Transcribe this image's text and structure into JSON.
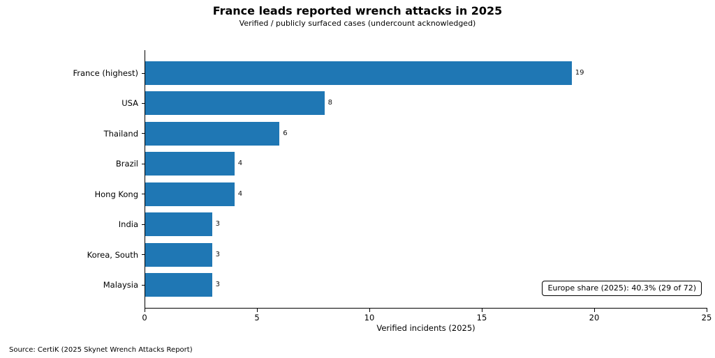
{
  "header": {
    "title": "France leads reported wrench attacks in 2025",
    "subtitle": "Verified / publicly surfaced cases (undercount acknowledged)"
  },
  "chart_data": {
    "type": "bar",
    "orientation": "horizontal",
    "title": "France leads reported wrench attacks in 2025",
    "subtitle": "Verified / publicly surfaced cases (undercount acknowledged)",
    "categories": [
      "France (highest)",
      "USA",
      "Thailand",
      "Brazil",
      "Hong Kong",
      "India",
      "Korea, South",
      "Malaysia"
    ],
    "values": [
      19,
      8,
      6,
      4,
      4,
      3,
      3,
      3
    ],
    "xlabel": "Verified incidents (2025)",
    "ylabel": "",
    "xlim": [
      0,
      25
    ],
    "xticks": [
      0,
      5,
      10,
      15,
      20,
      25
    ],
    "bar_color": "#1f77b4",
    "grid": false,
    "legend": "none",
    "annotation": "Europe share (2025): 40.3% (29 of 72)"
  },
  "footer": {
    "source": "Source: CertiK (2025 Skynet Wrench Attacks Report)"
  }
}
